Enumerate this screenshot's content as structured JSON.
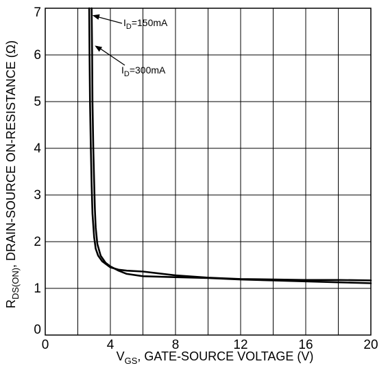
{
  "chart_data": {
    "type": "line",
    "xlabel": {
      "main": "V",
      "sub": "GS",
      "rest": ", GATE-SOURCE VOLTAGE (V)"
    },
    "ylabel": {
      "main": "R",
      "sub": "DS(ON)",
      "rest": ", DRAIN-SOURCE ON-RESISTANCE  (Ω)"
    },
    "xlim": [
      0,
      20
    ],
    "ylim": [
      0,
      7
    ],
    "x_grid": [
      0,
      2,
      4,
      6,
      8,
      10,
      12,
      14,
      16,
      18,
      20
    ],
    "y_grid": [
      0,
      1,
      2,
      3,
      4,
      5,
      6,
      7
    ],
    "x_ticks": [
      {
        "value": 0,
        "label": "0"
      },
      {
        "value": 4,
        "label": "4"
      },
      {
        "value": 8,
        "label": "8"
      },
      {
        "value": 12,
        "label": "12"
      },
      {
        "value": 16,
        "label": "16"
      },
      {
        "value": 20,
        "label": "20"
      }
    ],
    "y_ticks": [
      {
        "value": 0,
        "label": "0"
      },
      {
        "value": 1,
        "label": "1"
      },
      {
        "value": 2,
        "label": "2"
      },
      {
        "value": 3,
        "label": "3"
      },
      {
        "value": 4,
        "label": "4"
      },
      {
        "value": 5,
        "label": "5"
      },
      {
        "value": 6,
        "label": "6"
      },
      {
        "value": 7,
        "label": "7"
      }
    ],
    "grid": true,
    "series": [
      {
        "name": "I_D=150mA",
        "x": [
          2.7,
          2.72,
          2.75,
          2.8,
          2.85,
          2.9,
          3.0,
          3.1,
          3.25,
          3.5,
          4.0,
          4.5,
          5.0,
          6.0,
          8.0,
          10.0,
          12.0,
          14.0,
          16.0,
          18.0,
          20.0
        ],
        "y": [
          7.0,
          6.0,
          5.0,
          4.0,
          3.2,
          2.6,
          2.1,
          1.85,
          1.7,
          1.58,
          1.45,
          1.4,
          1.38,
          1.36,
          1.28,
          1.23,
          1.2,
          1.19,
          1.18,
          1.18,
          1.17
        ]
      },
      {
        "name": "I_D=300mA",
        "x": [
          2.85,
          2.88,
          2.9,
          2.95,
          3.0,
          3.05,
          3.1,
          3.2,
          3.4,
          3.7,
          4.0,
          4.5,
          5.0,
          6.0,
          8.0,
          10.0,
          12.0,
          14.0,
          16.0,
          18.0,
          20.0
        ],
        "y": [
          7.0,
          6.0,
          5.0,
          4.0,
          3.3,
          2.7,
          2.3,
          1.95,
          1.7,
          1.55,
          1.47,
          1.38,
          1.31,
          1.26,
          1.24,
          1.22,
          1.19,
          1.17,
          1.15,
          1.13,
          1.11
        ]
      }
    ],
    "annotations": [
      {
        "series": 0,
        "main": "I",
        "sub": "D",
        "rest": "=150mA",
        "x": 2.85,
        "y": 6.85
      },
      {
        "series": 1,
        "main": "I",
        "sub": "D",
        "rest": "=300mA",
        "x": 3.0,
        "y": 6.2
      }
    ]
  }
}
